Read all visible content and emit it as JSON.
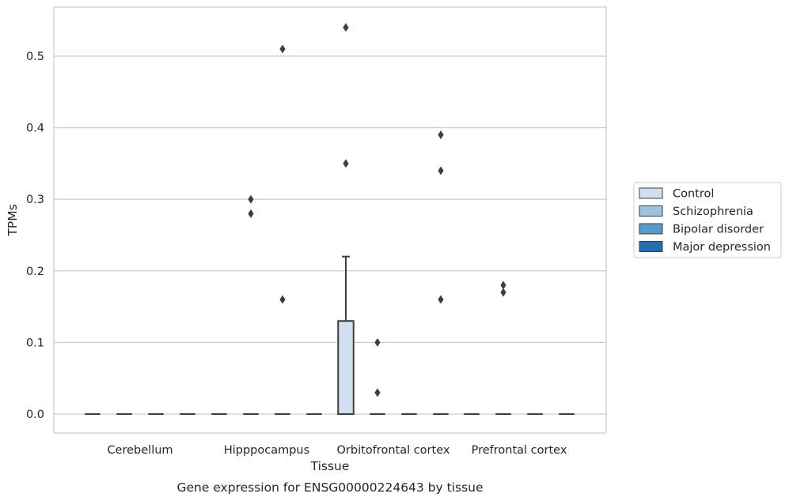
{
  "chart_data": {
    "type": "box",
    "title": "",
    "caption": "Gene expression for ENSG00000224643 by tissue",
    "xlabel": "Tissue",
    "ylabel": "TPMs",
    "ylim": [
      -0.027,
      0.565
    ],
    "yticks": [
      0.0,
      0.1,
      0.2,
      0.3,
      0.4,
      0.5
    ],
    "ytick_labels": [
      "0.0",
      "0.1",
      "0.2",
      "0.3",
      "0.4",
      "0.5"
    ],
    "grid": "horizontal",
    "legend_position": "outside right",
    "categories": [
      "Cerebellum",
      "Hipppocampus",
      "Orbitofrontal cortex",
      "Prefrontal cortex"
    ],
    "series": [
      {
        "name": "Control",
        "color": "#d0e0f0"
      },
      {
        "name": "Schizophrenia",
        "color": "#9dc4de"
      },
      {
        "name": "Bipolar disorder",
        "color": "#5a9ac8"
      },
      {
        "name": "Major depression",
        "color": "#2a6bae"
      }
    ],
    "boxes": [
      {
        "category": 0,
        "series": 0,
        "q1": 0,
        "median": 0,
        "q3": 0,
        "whisker_low": 0,
        "whisker_high": 0
      },
      {
        "category": 0,
        "series": 1,
        "q1": 0,
        "median": 0,
        "q3": 0,
        "whisker_low": 0,
        "whisker_high": 0
      },
      {
        "category": 0,
        "series": 2,
        "q1": 0,
        "median": 0,
        "q3": 0,
        "whisker_low": 0,
        "whisker_high": 0
      },
      {
        "category": 0,
        "series": 3,
        "q1": 0,
        "median": 0,
        "q3": 0,
        "whisker_low": 0,
        "whisker_high": 0
      },
      {
        "category": 1,
        "series": 0,
        "q1": 0,
        "median": 0,
        "q3": 0,
        "whisker_low": 0,
        "whisker_high": 0
      },
      {
        "category": 1,
        "series": 1,
        "q1": 0,
        "median": 0,
        "q3": 0,
        "whisker_low": 0,
        "whisker_high": 0
      },
      {
        "category": 1,
        "series": 2,
        "q1": 0,
        "median": 0,
        "q3": 0,
        "whisker_low": 0,
        "whisker_high": 0
      },
      {
        "category": 1,
        "series": 3,
        "q1": 0,
        "median": 0,
        "q3": 0,
        "whisker_low": 0,
        "whisker_high": 0
      },
      {
        "category": 2,
        "series": 0,
        "q1": 0,
        "median": 0,
        "q3": 0.13,
        "whisker_low": 0,
        "whisker_high": 0.22
      },
      {
        "category": 2,
        "series": 1,
        "q1": 0,
        "median": 0,
        "q3": 0,
        "whisker_low": 0,
        "whisker_high": 0
      },
      {
        "category": 2,
        "series": 2,
        "q1": 0,
        "median": 0,
        "q3": 0,
        "whisker_low": 0,
        "whisker_high": 0
      },
      {
        "category": 2,
        "series": 3,
        "q1": 0,
        "median": 0,
        "q3": 0,
        "whisker_low": 0,
        "whisker_high": 0
      },
      {
        "category": 3,
        "series": 0,
        "q1": 0,
        "median": 0,
        "q3": 0,
        "whisker_low": 0,
        "whisker_high": 0
      },
      {
        "category": 3,
        "series": 1,
        "q1": 0,
        "median": 0,
        "q3": 0,
        "whisker_low": 0,
        "whisker_high": 0
      },
      {
        "category": 3,
        "series": 2,
        "q1": 0,
        "median": 0,
        "q3": 0,
        "whisker_low": 0,
        "whisker_high": 0
      },
      {
        "category": 3,
        "series": 3,
        "q1": 0,
        "median": 0,
        "q3": 0,
        "whisker_low": 0,
        "whisker_high": 0
      }
    ],
    "outliers": [
      {
        "category": 1,
        "series": 1,
        "value": 0.3
      },
      {
        "category": 1,
        "series": 1,
        "value": 0.28
      },
      {
        "category": 1,
        "series": 2,
        "value": 0.51
      },
      {
        "category": 1,
        "series": 2,
        "value": 0.16
      },
      {
        "category": 2,
        "series": 0,
        "value": 0.54
      },
      {
        "category": 2,
        "series": 0,
        "value": 0.35
      },
      {
        "category": 2,
        "series": 1,
        "value": 0.1
      },
      {
        "category": 2,
        "series": 1,
        "value": 0.03
      },
      {
        "category": 2,
        "series": 3,
        "value": 0.39
      },
      {
        "category": 2,
        "series": 3,
        "value": 0.34
      },
      {
        "category": 2,
        "series": 3,
        "value": 0.16
      },
      {
        "category": 3,
        "series": 1,
        "value": 0.18
      },
      {
        "category": 3,
        "series": 1,
        "value": 0.17
      }
    ]
  }
}
